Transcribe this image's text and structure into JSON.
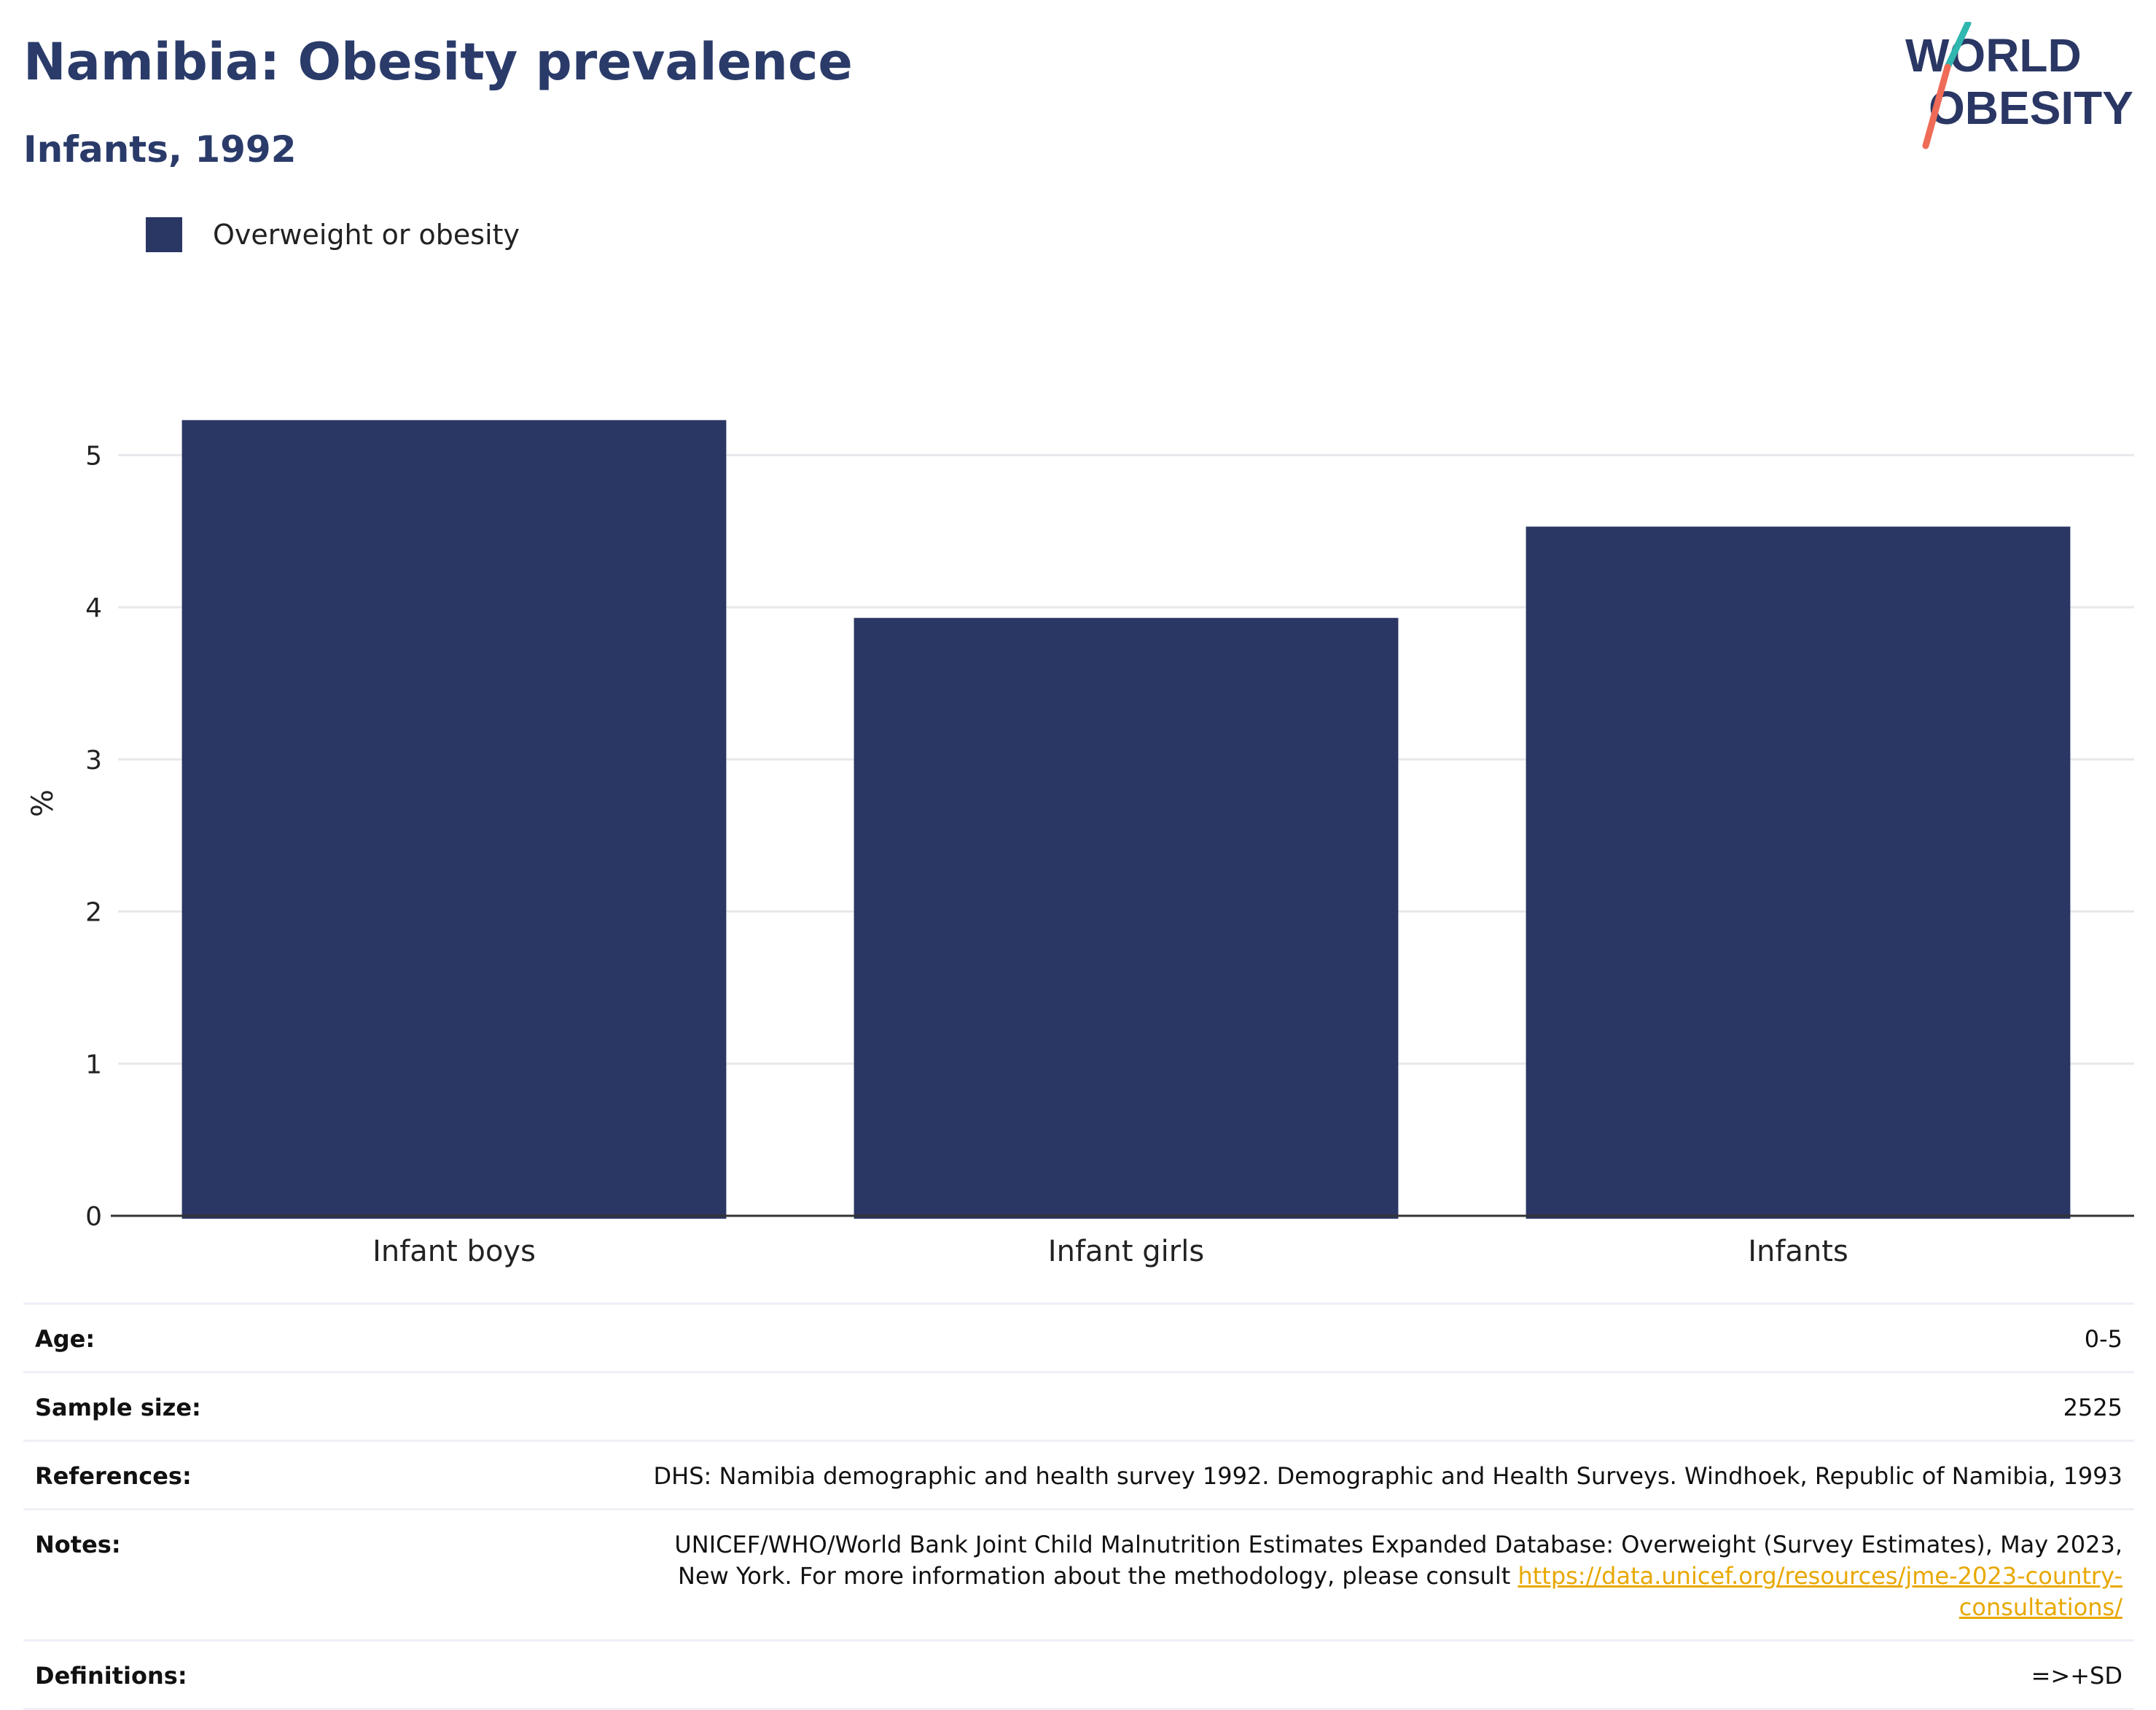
{
  "title": "Namibia: Obesity prevalence",
  "subtitle": "Infants, 1992",
  "logo": {
    "line1": "WORLD",
    "line2": "OBESITY"
  },
  "legend": {
    "label": "Overweight or obesity",
    "color": "#2a3764"
  },
  "chart_data": {
    "type": "bar",
    "title": "Namibia: Obesity prevalence",
    "subtitle": "Infants, 1992",
    "categories": [
      "Infant boys",
      "Infant girls",
      "Infants"
    ],
    "series": [
      {
        "name": "Overweight or obesity",
        "values": [
          5.23,
          3.93,
          4.53
        ],
        "color": "#2a3764"
      }
    ],
    "xlabel": "",
    "ylabel": "%",
    "ylim": [
      0,
      5.5
    ],
    "yticks": [
      0,
      1,
      2,
      3,
      4,
      5
    ],
    "grid": true,
    "legend_position": "top-left"
  },
  "meta": {
    "age": {
      "label": "Age:",
      "value": "0-5"
    },
    "sample_size": {
      "label": "Sample size:",
      "value": "2525"
    },
    "references": {
      "label": "References:",
      "value": "DHS: Namibia demographic and health survey 1992. Demographic and Health Surveys. Windhoek, Republic of Namibia, 1993"
    },
    "notes": {
      "label": "Notes:",
      "value": "UNICEF/WHO/World Bank Joint Child Malnutrition Estimates Expanded Database: Overweight (Survey Estimates), May 2023, New York. For more information about the methodology, please consult",
      "link": "https://data.unicef.org/resources/jme-2023-country-consultations/"
    },
    "definitions": {
      "label": "Definitions:",
      "value": "=>+SD"
    }
  }
}
